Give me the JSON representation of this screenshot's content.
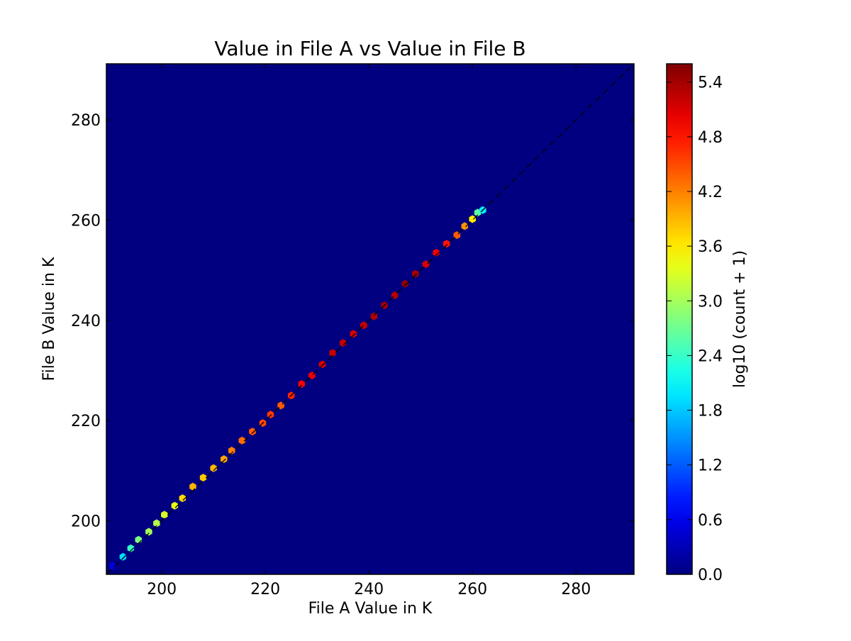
{
  "chart_data": {
    "type": "heatmap",
    "subtype": "hexbin",
    "title": "Value in File A vs Value in File B",
    "xlabel": "File A Value in K",
    "ylabel": "File B Value in K",
    "xlim": [
      189.3,
      291.2
    ],
    "ylim": [
      189.3,
      291.2
    ],
    "xticks": [
      200,
      220,
      240,
      260,
      280
    ],
    "yticks": [
      200,
      220,
      240,
      260,
      280
    ],
    "background_color": "#000080",
    "colormap": "jet",
    "reference_line": {
      "style": "dashed",
      "color": "#000000",
      "from": [
        189.3,
        189.3
      ],
      "to": [
        291.2,
        291.2
      ]
    },
    "colorbar": {
      "label": "log10 (count + 1)",
      "range": [
        0.0,
        5.6
      ],
      "ticks": [
        "0.0",
        "0.6",
        "1.2",
        "1.8",
        "2.4",
        "3.0",
        "3.6",
        "4.2",
        "4.8",
        "5.4"
      ]
    },
    "points": [
      {
        "x": 190.5,
        "y": 191.0,
        "v": 0.5
      },
      {
        "x": 192.5,
        "y": 192.8,
        "v": 1.9
      },
      {
        "x": 194.0,
        "y": 194.5,
        "v": 2.4
      },
      {
        "x": 195.5,
        "y": 196.2,
        "v": 2.8
      },
      {
        "x": 197.5,
        "y": 197.8,
        "v": 3.0
      },
      {
        "x": 199.0,
        "y": 199.5,
        "v": 3.1
      },
      {
        "x": 200.5,
        "y": 201.2,
        "v": 3.3
      },
      {
        "x": 202.5,
        "y": 203.0,
        "v": 3.4
      },
      {
        "x": 204.0,
        "y": 204.5,
        "v": 3.7
      },
      {
        "x": 206.0,
        "y": 206.8,
        "v": 3.9
      },
      {
        "x": 208.0,
        "y": 208.6,
        "v": 3.8
      },
      {
        "x": 210.0,
        "y": 210.5,
        "v": 3.9
      },
      {
        "x": 212.0,
        "y": 212.3,
        "v": 4.0
      },
      {
        "x": 213.5,
        "y": 214.0,
        "v": 4.2
      },
      {
        "x": 215.5,
        "y": 216.0,
        "v": 4.3
      },
      {
        "x": 217.5,
        "y": 217.8,
        "v": 4.4
      },
      {
        "x": 219.5,
        "y": 219.5,
        "v": 4.5
      },
      {
        "x": 221.0,
        "y": 221.2,
        "v": 4.6
      },
      {
        "x": 223.0,
        "y": 223.0,
        "v": 4.4
      },
      {
        "x": 225.0,
        "y": 225.0,
        "v": 4.7
      },
      {
        "x": 227.0,
        "y": 227.3,
        "v": 4.9
      },
      {
        "x": 229.0,
        "y": 229.0,
        "v": 5.0
      },
      {
        "x": 231.0,
        "y": 231.2,
        "v": 5.1
      },
      {
        "x": 233.0,
        "y": 233.5,
        "v": 5.2
      },
      {
        "x": 235.0,
        "y": 235.5,
        "v": 5.2
      },
      {
        "x": 237.0,
        "y": 237.3,
        "v": 5.1
      },
      {
        "x": 239.0,
        "y": 239.0,
        "v": 5.2
      },
      {
        "x": 241.0,
        "y": 240.8,
        "v": 5.3
      },
      {
        "x": 243.0,
        "y": 243.0,
        "v": 5.4
      },
      {
        "x": 245.0,
        "y": 245.0,
        "v": 5.3
      },
      {
        "x": 247.0,
        "y": 247.3,
        "v": 5.5
      },
      {
        "x": 249.0,
        "y": 249.3,
        "v": 5.4
      },
      {
        "x": 251.0,
        "y": 251.2,
        "v": 5.1
      },
      {
        "x": 253.0,
        "y": 253.5,
        "v": 5.0
      },
      {
        "x": 255.0,
        "y": 255.3,
        "v": 4.8
      },
      {
        "x": 257.0,
        "y": 257.0,
        "v": 4.4
      },
      {
        "x": 258.5,
        "y": 258.8,
        "v": 4.1
      },
      {
        "x": 260.0,
        "y": 260.2,
        "v": 3.6
      },
      {
        "x": 261.0,
        "y": 261.5,
        "v": 2.6
      },
      {
        "x": 262.0,
        "y": 262.0,
        "v": 2.0
      }
    ]
  }
}
